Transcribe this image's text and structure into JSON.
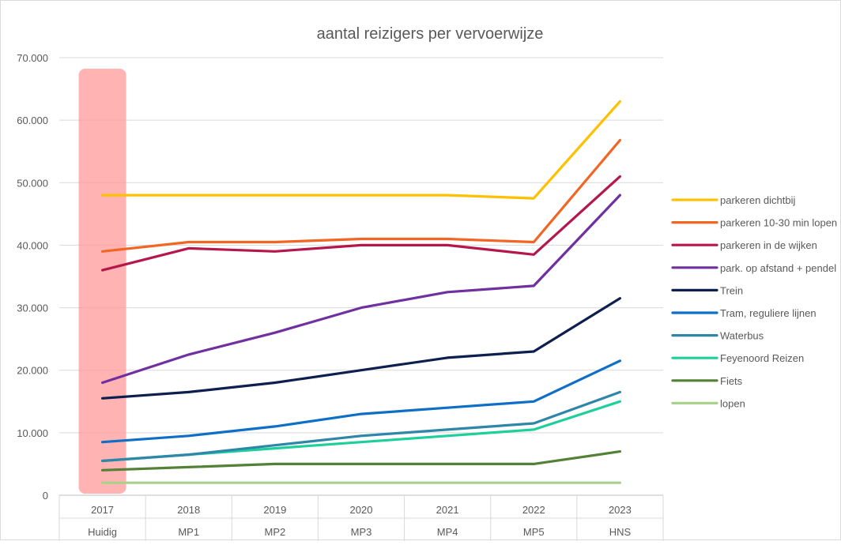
{
  "chart_data": {
    "type": "line",
    "title": "aantal reizigers per vervoerwijze",
    "xlabel": "",
    "ylabel": "",
    "categories": [
      "2017",
      "2018",
      "2019",
      "2020",
      "2021",
      "2022",
      "2023"
    ],
    "category_sublabels": [
      "Huidig",
      "MP1",
      "MP2",
      "MP3",
      "MP4",
      "MP5",
      "HNS"
    ],
    "y_ticks": [
      "0",
      "10.000",
      "20.000",
      "30.000",
      "40.000",
      "50.000",
      "60.000",
      "70.000"
    ],
    "ylim": [
      0,
      70000
    ],
    "grid": "horizontal",
    "legend_position": "right",
    "highlight": {
      "category": "2017",
      "color": "#ff9999"
    },
    "series": [
      {
        "name": "parkeren dichtbij",
        "color": "#ffc000",
        "values": [
          48000,
          48000,
          48000,
          48000,
          48000,
          47500,
          63000
        ]
      },
      {
        "name": "parkeren 10-30 min lopen",
        "color": "#f26522",
        "values": [
          39000,
          40500,
          40500,
          41000,
          41000,
          40500,
          56800
        ]
      },
      {
        "name": "parkeren in de wijken",
        "color": "#b5174b",
        "values": [
          36000,
          39500,
          39000,
          40000,
          40000,
          38500,
          51000
        ]
      },
      {
        "name": "park. op afstand + pendel",
        "color": "#7030a0",
        "values": [
          18000,
          22500,
          26000,
          30000,
          32500,
          33500,
          48000
        ]
      },
      {
        "name": "Trein",
        "color": "#0d1f4f",
        "values": [
          15500,
          16500,
          18000,
          20000,
          22000,
          23000,
          31500
        ]
      },
      {
        "name": "Tram, reguliere lijnen",
        "color": "#0f6fc6",
        "values": [
          8500,
          9500,
          11000,
          13000,
          14000,
          15000,
          21500
        ]
      },
      {
        "name": "Waterbus",
        "color": "#2e86a8",
        "values": [
          5500,
          6500,
          8000,
          9500,
          10500,
          11500,
          16500
        ]
      },
      {
        "name": "Feyenoord Reizen",
        "color": "#1fcf9b",
        "values": [
          5500,
          6500,
          7500,
          8500,
          9500,
          10500,
          15000
        ]
      },
      {
        "name": "Fiets",
        "color": "#538135",
        "values": [
          4000,
          4500,
          5000,
          5000,
          5000,
          5000,
          7000
        ]
      },
      {
        "name": "lopen",
        "color": "#a9d18e",
        "values": [
          2000,
          2000,
          2000,
          2000,
          2000,
          2000,
          2000
        ]
      }
    ]
  }
}
